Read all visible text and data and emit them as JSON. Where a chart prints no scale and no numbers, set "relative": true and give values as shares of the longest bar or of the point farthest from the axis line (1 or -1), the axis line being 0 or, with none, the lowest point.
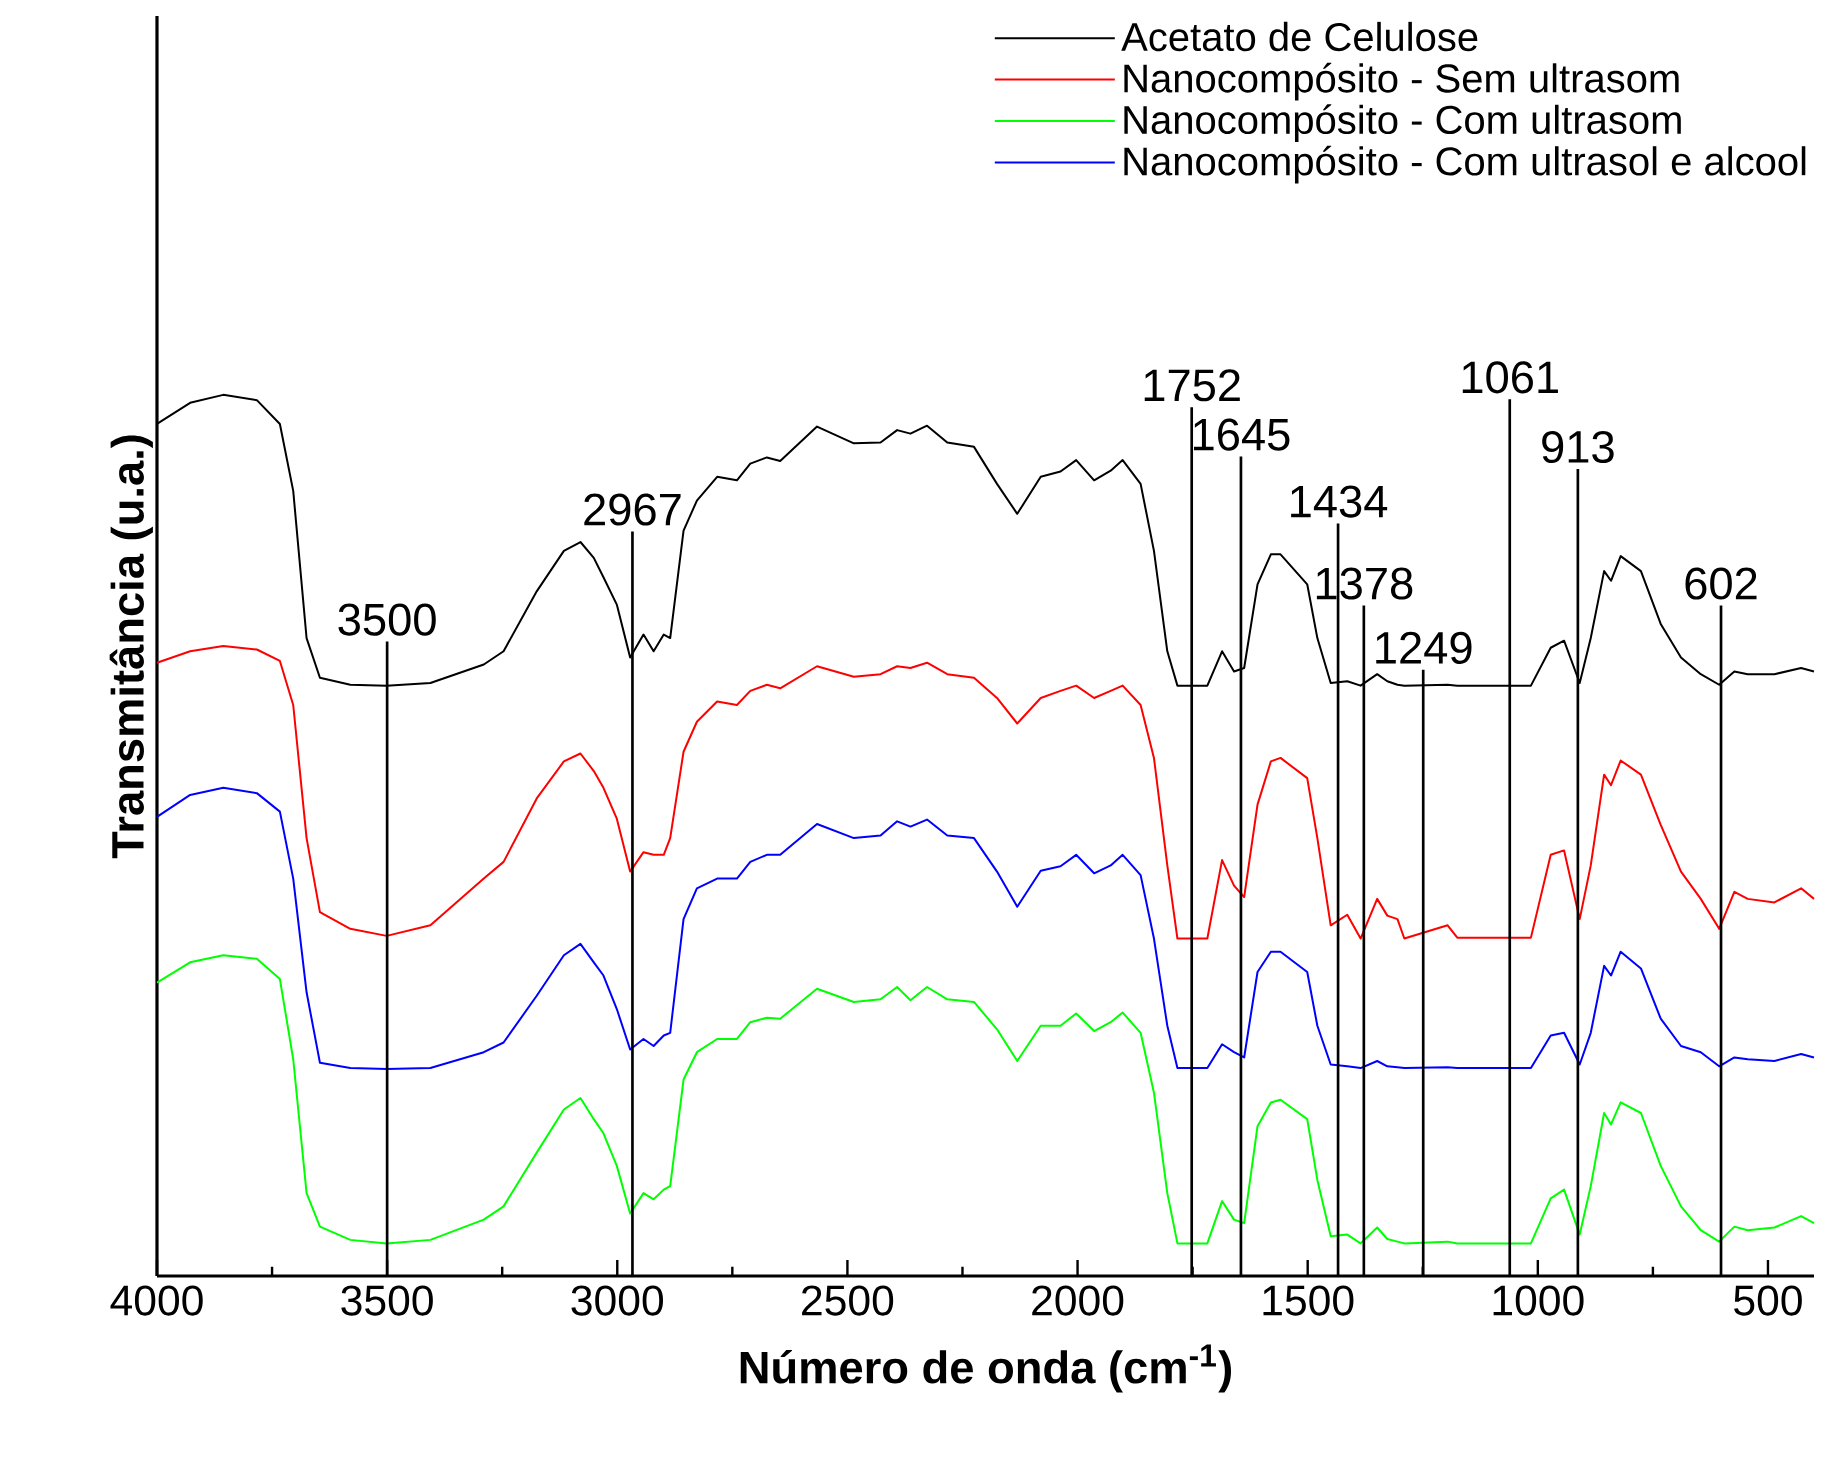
{
  "chart_data": {
    "type": "line",
    "relative": true,
    "xlabel": "Número de onda (cm$^{-1}$)",
    "ylabel": "Transmitância (u.a.)",
    "xlim": [
      4000,
      400
    ],
    "xticks": [
      4000,
      3500,
      3000,
      2500,
      2000,
      1500,
      1000,
      500
    ],
    "legend": "top right",
    "x": [
      4000,
      3928,
      3856,
      3783,
      3733,
      3704,
      3675,
      3646,
      3580,
      3501,
      3406,
      3290,
      3247,
      3175,
      3116,
      3080,
      3051,
      3030,
      3001,
      2972,
      2943,
      2921,
      2899,
      2885,
      2856,
      2827,
      2783,
      2740,
      2711,
      2675,
      2646,
      2566,
      2486,
      2428,
      2392,
      2363,
      2327,
      2283,
      2225,
      2175,
      2131,
      2080,
      2037,
      2003,
      1964,
      1928,
      1902,
      1863,
      1834,
      1805,
      1783,
      1718,
      1686,
      1660,
      1638,
      1609,
      1580,
      1559,
      1501,
      1479,
      1450,
      1414,
      1385,
      1349,
      1327,
      1305,
      1290,
      1196,
      1175,
      1015,
      972,
      943,
      909,
      885,
      856,
      841,
      820,
      776,
      733,
      689,
      646,
      606,
      573,
      544,
      486,
      428,
      400
    ],
    "series": [
      {
        "name": "Acetato de Celulose",
        "color": "#000000",
        "values": [
          0.967,
          0.991,
          1.0,
          0.994,
          0.967,
          0.891,
          0.724,
          0.679,
          0.671,
          0.67,
          0.673,
          0.694,
          0.709,
          0.777,
          0.823,
          0.833,
          0.815,
          0.793,
          0.762,
          0.702,
          0.728,
          0.709,
          0.728,
          0.724,
          0.846,
          0.88,
          0.907,
          0.903,
          0.922,
          0.929,
          0.925,
          0.964,
          0.945,
          0.946,
          0.96,
          0.956,
          0.965,
          0.946,
          0.941,
          0.899,
          0.865,
          0.907,
          0.913,
          0.926,
          0.903,
          0.914,
          0.926,
          0.899,
          0.823,
          0.709,
          0.67,
          0.67,
          0.709,
          0.686,
          0.69,
          0.785,
          0.819,
          0.819,
          0.785,
          0.724,
          0.673,
          0.675,
          0.67,
          0.683,
          0.675,
          0.671,
          0.67,
          0.671,
          0.67,
          0.67,
          0.713,
          0.721,
          0.673,
          0.724,
          0.8,
          0.789,
          0.817,
          0.8,
          0.74,
          0.702,
          0.683,
          0.671,
          0.686,
          0.683,
          0.683,
          0.69,
          0.686
        ]
      },
      {
        "name": "Nanocompósito - Sem ultrasom",
        "color": "#ff0000",
        "values": [
          0.696,
          0.709,
          0.715,
          0.711,
          0.698,
          0.648,
          0.497,
          0.413,
          0.394,
          0.386,
          0.398,
          0.451,
          0.47,
          0.542,
          0.584,
          0.593,
          0.573,
          0.554,
          0.519,
          0.459,
          0.481,
          0.478,
          0.478,
          0.497,
          0.595,
          0.629,
          0.652,
          0.648,
          0.664,
          0.671,
          0.667,
          0.692,
          0.68,
          0.683,
          0.692,
          0.69,
          0.696,
          0.683,
          0.679,
          0.656,
          0.627,
          0.656,
          0.664,
          0.67,
          0.656,
          0.664,
          0.67,
          0.648,
          0.588,
          0.466,
          0.383,
          0.383,
          0.472,
          0.443,
          0.43,
          0.535,
          0.584,
          0.588,
          0.565,
          0.497,
          0.398,
          0.41,
          0.383,
          0.428,
          0.409,
          0.405,
          0.383,
          0.398,
          0.384,
          0.384,
          0.478,
          0.483,
          0.405,
          0.466,
          0.569,
          0.557,
          0.585,
          0.569,
          0.512,
          0.459,
          0.428,
          0.394,
          0.436,
          0.428,
          0.424,
          0.44,
          0.428
        ]
      },
      {
        "name": "Nanocompósito - Com ultrasom",
        "color": "#00ff00",
        "values": [
          0.333,
          0.356,
          0.364,
          0.36,
          0.337,
          0.246,
          0.094,
          0.056,
          0.041,
          0.037,
          0.041,
          0.064,
          0.079,
          0.14,
          0.189,
          0.202,
          0.178,
          0.162,
          0.125,
          0.071,
          0.094,
          0.087,
          0.098,
          0.102,
          0.223,
          0.254,
          0.269,
          0.269,
          0.288,
          0.293,
          0.292,
          0.326,
          0.311,
          0.314,
          0.328,
          0.313,
          0.328,
          0.314,
          0.311,
          0.28,
          0.244,
          0.284,
          0.284,
          0.298,
          0.278,
          0.288,
          0.299,
          0.276,
          0.208,
          0.094,
          0.037,
          0.037,
          0.085,
          0.064,
          0.06,
          0.17,
          0.197,
          0.2,
          0.178,
          0.109,
          0.045,
          0.047,
          0.037,
          0.055,
          0.042,
          0.039,
          0.037,
          0.039,
          0.037,
          0.037,
          0.088,
          0.098,
          0.047,
          0.102,
          0.185,
          0.172,
          0.197,
          0.185,
          0.125,
          0.079,
          0.052,
          0.039,
          0.056,
          0.052,
          0.055,
          0.068,
          0.06
        ]
      },
      {
        "name": "Nanocompósito - Com ultrasol e alcool",
        "color": "#0000ff",
        "values": [
          0.521,
          0.546,
          0.554,
          0.548,
          0.527,
          0.451,
          0.322,
          0.242,
          0.236,
          0.235,
          0.236,
          0.254,
          0.265,
          0.318,
          0.364,
          0.377,
          0.356,
          0.341,
          0.303,
          0.257,
          0.269,
          0.261,
          0.273,
          0.276,
          0.405,
          0.44,
          0.451,
          0.451,
          0.47,
          0.478,
          0.478,
          0.513,
          0.497,
          0.5,
          0.516,
          0.51,
          0.518,
          0.5,
          0.497,
          0.459,
          0.419,
          0.46,
          0.465,
          0.478,
          0.457,
          0.466,
          0.478,
          0.455,
          0.383,
          0.284,
          0.236,
          0.236,
          0.263,
          0.254,
          0.248,
          0.345,
          0.368,
          0.368,
          0.345,
          0.284,
          0.24,
          0.238,
          0.236,
          0.244,
          0.238,
          0.237,
          0.236,
          0.237,
          0.236,
          0.236,
          0.273,
          0.276,
          0.24,
          0.276,
          0.352,
          0.341,
          0.368,
          0.349,
          0.292,
          0.261,
          0.254,
          0.238,
          0.248,
          0.246,
          0.244,
          0.252,
          0.248
        ]
      }
    ],
    "ref_lines": [
      {
        "axis": "x",
        "value": 3500,
        "label": "3500"
      },
      {
        "axis": "x",
        "value": 2967,
        "label": "2967"
      },
      {
        "axis": "x",
        "value": 1752,
        "label": "1752"
      },
      {
        "axis": "x",
        "value": 1645,
        "label": "1645"
      },
      {
        "axis": "x",
        "value": 1434,
        "label": "1434"
      },
      {
        "axis": "x",
        "value": 1378,
        "label": "1378"
      },
      {
        "axis": "x",
        "value": 1249,
        "label": "1249"
      },
      {
        "axis": "x",
        "value": 1061,
        "label": "1061"
      },
      {
        "axis": "x",
        "value": 913,
        "label": "913"
      },
      {
        "axis": "x",
        "value": 602,
        "label": "602"
      }
    ]
  }
}
